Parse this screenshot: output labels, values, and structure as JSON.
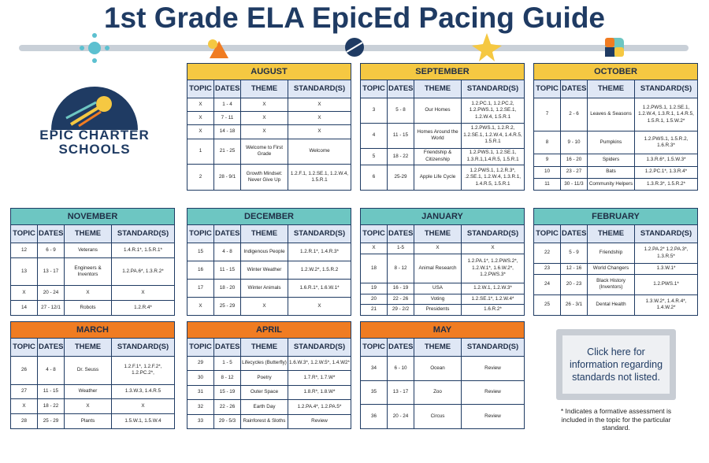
{
  "title": "1st Grade ELA EpicEd Pacing Guide",
  "logo": {
    "lines": [
      "EPIC CHARTER",
      "SCHOOLS"
    ]
  },
  "table_headers": [
    "TOPIC",
    "DATES",
    "THEME",
    "STANDARD(S)"
  ],
  "months": [
    {
      "name": "AUGUST",
      "rows": [
        [
          "X",
          "1 - 4",
          "X",
          "X"
        ],
        [
          "X",
          "7 - 11",
          "X",
          "X"
        ],
        [
          "X",
          "14 - 18",
          "X",
          "X"
        ],
        [
          "1",
          "21 - 25",
          "Welcome to First Grade",
          "Welcome"
        ],
        [
          "2",
          "28 - 9/1",
          "Growth Mindset: Never Give Up",
          "1.2.F.1, 1.2.SE.1, 1.2.W.4, 1.5.R.1"
        ]
      ]
    },
    {
      "name": "SEPTEMBER",
      "rows": [
        [
          "3",
          "5 - 8",
          "Our Homes",
          "1.2.PC.1, 1.2.PC.2, 1.2.PWS.1, 1.2.SE.1, 1.2.W.4, 1.5.R.1"
        ],
        [
          "4",
          "11 - 15",
          "Homes Around the World",
          "1.2.PWS.1, 1.2.R.2, 1.2.SE.1, 1.2.W.4, 1.4.R.5, 1.5.R.1"
        ],
        [
          "5",
          "18 - 22",
          "Friendship & Citizenship",
          "1.2.PWS.1, 1.2.SE.1, 1.3.R.1,1.4.R.5, 1.5.R.1"
        ],
        [
          "6",
          "25-29",
          "Apple Life Cycle",
          "1.2.PWS.1, 1.2.R.3*, .2.SE.1, 1.2.W.4, 1.3.R.1, 1.4.R.5, 1.5.R.1"
        ]
      ]
    },
    {
      "name": "OCTOBER",
      "rows": [
        [
          "7",
          "2 - 6",
          "Leaves & Seasons",
          "1.2.PWS.1, 1.2.SE.1, 1.2.W.4, 1.3.R.1, 1.4.R.5, 1.5.R.1, 1.5.W.2*"
        ],
        [
          "8",
          "9 - 10",
          "Pumpkins",
          "1.2.PWS.1, 1.5.R.2, 1.6.R.3*"
        ],
        [
          "9",
          "16 - 20",
          "Spiders",
          "1.3.R.6*, 1.5.W.3*"
        ],
        [
          "10",
          "23 - 27",
          "Bats",
          "1.2.PC.1*, 1.3.R.4*"
        ],
        [
          "11",
          "30 - 11/3",
          "Community Helpers",
          "1.3.R.3*, 1.5.R.2*"
        ]
      ]
    },
    {
      "name": "NOVEMBER",
      "rows": [
        [
          "12",
          "6 - 9",
          "Veterans",
          "1.4.R.1*, 1.5.R.1*"
        ],
        [
          "13",
          "13 - 17",
          "Engineers & Inventors",
          "1.2.PA.6*, 1.3.R.2*"
        ],
        [
          "X",
          "20 - 24",
          "X",
          "X"
        ],
        [
          "14",
          "27 - 12/1",
          "Robots",
          "1.2.R.4*"
        ]
      ]
    },
    {
      "name": "DECEMBER",
      "rows": [
        [
          "15",
          "4 - 8",
          "Indigenous People",
          "1.2.R.1*, 1.4.R.3*"
        ],
        [
          "16",
          "11 - 15",
          "Winter Weather",
          "1.2.W.2*, 1.5.R.2"
        ],
        [
          "17",
          "18 - 20",
          "Winter Animals",
          "1.6.R.1*, 1.6.W.1*"
        ],
        [
          "X",
          "25 - 29",
          "X",
          "X"
        ]
      ]
    },
    {
      "name": "JANUARY",
      "rows": [
        [
          "X",
          "1-5",
          "X",
          "X"
        ],
        [
          "18",
          "8 - 12",
          "Animal Research",
          "1.2.PA.1*, 1.2.PWS.2*, 1.2.W.1*, 1.6.W.2*, 1.2.PWS.3*"
        ],
        [
          "19",
          "16 - 19",
          "USA",
          "1.2.W.1, 1.2.W.3*"
        ],
        [
          "20",
          "22 - 26",
          "Voting",
          "1.2.SE.1*, 1.2.W.4*"
        ],
        [
          "21",
          "29 - 2/2",
          "Presidents",
          "1.6.R.2*"
        ]
      ]
    },
    {
      "name": "FEBRUARY",
      "rows": [
        [
          "22",
          "5 - 9",
          "Friendship",
          "1.2.PA.2* 1.2.PA.3*, 1.3.R.5*"
        ],
        [
          "23",
          "12 - 16",
          "World Changers",
          "1.3.W.1*"
        ],
        [
          "24",
          "20 - 23",
          "Black History (Inventors)",
          "1.2.PWS.1*"
        ],
        [
          "25",
          "26 - 3/1",
          "Dental Health",
          "1.3.W.2*, 1.4.R.4*, 1.4.W.2*"
        ]
      ]
    },
    {
      "name": "MARCH",
      "rows": [
        [
          "26",
          "4 - 8",
          "Dr. Seuss",
          "1.2.F.1*, 1.2.F.2*, 1.2.PC.2*,"
        ],
        [
          "27",
          "11 - 15",
          "Weather",
          "1.3.W.3, 1.4.R.5"
        ],
        [
          "X",
          "18 - 22",
          "X",
          "X"
        ],
        [
          "28",
          "25 - 29",
          "Plants",
          "1.5.W.1, 1.5.W.4"
        ]
      ]
    },
    {
      "name": "APRIL",
      "rows": [
        [
          "29",
          "1 - 5",
          "Lifecycles (Butterfly)",
          "1.6.W.3*, 1.2.W.5*, 1.4.W2*"
        ],
        [
          "30",
          "8 - 12",
          "Poetry",
          "1.7.R*, 1.7.W*"
        ],
        [
          "31",
          "15 - 19",
          "Outer Space",
          "1.8.R*, 1.8.W*"
        ],
        [
          "32",
          "22 - 26",
          "Earth Day",
          "1.2.PA.4*, 1.2.PA.5*"
        ],
        [
          "33",
          "29 - 5/3",
          "Rainforest & Sloths",
          "Review"
        ]
      ]
    },
    {
      "name": "MAY",
      "rows": [
        [
          "34",
          "6 - 10",
          "Ocean",
          "Review"
        ],
        [
          "35",
          "13 - 17",
          "Zoo",
          "Review"
        ],
        [
          "36",
          "20 - 24",
          "Circus",
          "Review"
        ]
      ]
    }
  ],
  "button": "Click here for information regarding standards not listed.",
  "footnote": "* Indicates a formative assessment is included in the topic for the particular standard."
}
